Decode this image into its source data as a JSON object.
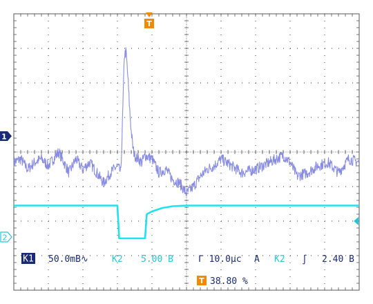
{
  "chart_data": {
    "type": "line",
    "xlim": [
      0,
      10
    ],
    "grid": true,
    "grid_divisions": {
      "x": 10,
      "y": 8
    },
    "series": [
      {
        "name": "1",
        "color": "#7b7fe0",
        "x": [
          0.0,
          0.2,
          0.4,
          0.6,
          0.8,
          1.0,
          1.3,
          1.6,
          1.8,
          2.0,
          2.2,
          2.4,
          2.6,
          2.8,
          3.0,
          3.1,
          3.15,
          3.2,
          3.25,
          3.3,
          3.35,
          3.4,
          3.45,
          3.5,
          3.6,
          3.7,
          3.8,
          4.0,
          4.2,
          4.4,
          4.6,
          4.8,
          5.0,
          5.2,
          5.4,
          5.6,
          5.8,
          6.0,
          6.3,
          6.6,
          7.0,
          7.4,
          7.8,
          8.0,
          8.2,
          8.5,
          8.8,
          9.1,
          9.4,
          9.7,
          10.0
        ],
        "y": [
          -0.3,
          -0.2,
          -0.5,
          -0.3,
          -0.2,
          -0.4,
          0.0,
          -0.6,
          -0.2,
          -0.5,
          -0.3,
          -0.6,
          -0.9,
          -0.6,
          -0.4,
          -0.6,
          1.0,
          2.8,
          2.9,
          2.2,
          1.3,
          0.6,
          0.1,
          -0.1,
          -0.2,
          -0.3,
          -0.1,
          -0.2,
          -0.6,
          -0.5,
          -0.8,
          -0.9,
          -1.2,
          -1.0,
          -0.7,
          -0.5,
          -0.4,
          -0.2,
          -0.4,
          -0.6,
          -0.5,
          -0.3,
          -0.1,
          -0.3,
          -0.7,
          -0.6,
          -0.4,
          -0.3,
          -0.6,
          -0.2,
          -0.3
        ]
      },
      {
        "name": "2",
        "color": "#22e0ee",
        "x": [
          0.0,
          3.0,
          3.05,
          3.8,
          3.85,
          4.0,
          4.3,
          4.6,
          5.0,
          10.0
        ],
        "y": [
          -1.55,
          -1.55,
          -2.5,
          -2.5,
          -1.8,
          -1.72,
          -1.62,
          -1.57,
          -1.55,
          -1.55
        ]
      }
    ],
    "markers": {
      "channel_1_label": "1",
      "channel_2_label": "2",
      "trigger_label": "T"
    },
    "status": {
      "k1_badge": "K1",
      "k1_scale": "50.0mB∿",
      "k2_label": "K2",
      "k2_scale": "5.00 B",
      "timebase": "Γ 10.0μc",
      "trigger_mode": "A",
      "trigger_source": "K2",
      "trigger_slope": "∫",
      "trigger_level": "2.40 B",
      "trigger_badge": "T",
      "trigger_position": "38.80 %"
    },
    "colors": {
      "channel_1": "#7b7fe0",
      "channel_2": "#22e0ee",
      "badge_bg": "#1a2a7a",
      "trigger": "#f08a00",
      "grid": "#555555",
      "text": "#1a2a7a"
    }
  }
}
